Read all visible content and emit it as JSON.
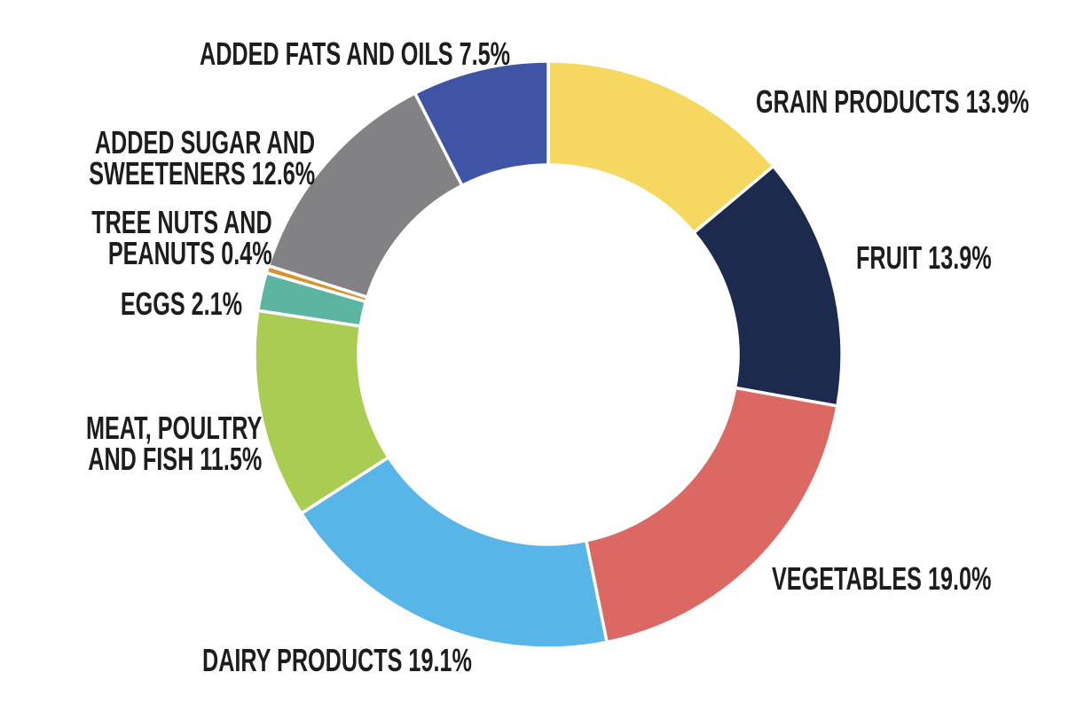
{
  "chart_data": {
    "type": "pie",
    "variant": "donut",
    "title": "",
    "unit": "%",
    "total": 100.0,
    "direction": "clockwise",
    "start_at": "12-oclock",
    "legend_position": "labels-around-ring",
    "background": "#ffffff",
    "label_color": "#1d1d1b",
    "segments": [
      {
        "id": "grain-products",
        "label": "GRAIN PRODUCTS",
        "value": 13.9,
        "display": "13.9%",
        "color": "#F6D75F",
        "label_lines": [
          "GRAIN PRODUCTS 13.9%"
        ]
      },
      {
        "id": "fruit",
        "label": "FRUIT",
        "value": 13.9,
        "display": "13.9%",
        "color": "#1C2B4D",
        "label_lines": [
          "FRUIT 13.9%"
        ]
      },
      {
        "id": "vegetables",
        "label": "VEGETABLES",
        "value": 19.0,
        "display": "19.0%",
        "color": "#DB6863",
        "label_lines": [
          "VEGETABLES 19.0%"
        ]
      },
      {
        "id": "dairy-products",
        "label": "DAIRY PRODUCTS",
        "value": 19.1,
        "display": "19.1%",
        "color": "#57B5E8",
        "label_lines": [
          "DAIRY PRODUCTS 19.1%"
        ]
      },
      {
        "id": "meat-poultry-and-fish",
        "label": "MEAT, POULTRY AND FISH",
        "value": 11.5,
        "display": "11.5%",
        "color": "#A9CC52",
        "label_lines": [
          "MEAT, POULTRY",
          "AND FISH 11.5%"
        ]
      },
      {
        "id": "eggs",
        "label": "EGGS",
        "value": 2.1,
        "display": "2.1%",
        "color": "#5BB5A0",
        "label_lines": [
          "EGGS 2.1%"
        ]
      },
      {
        "id": "tree-nuts-and-peanuts",
        "label": "TREE NUTS AND PEANUTS",
        "value": 0.4,
        "display": "0.4%",
        "color": "#DA922F",
        "label_lines": [
          "TREE NUTS AND",
          "PEANUTS 0.4%"
        ]
      },
      {
        "id": "added-sugar-and-sweeteners",
        "label": "ADDED SUGAR AND SWEETENERS",
        "value": 12.6,
        "display": "12.6%",
        "color": "#828285",
        "label_lines": [
          "ADDED SUGAR AND",
          "SWEETENERS 12.6%"
        ]
      },
      {
        "id": "added-fats-and-oils",
        "label": "ADDED FATS AND OILS",
        "value": 7.5,
        "display": "7.5%",
        "color": "#3D55A4",
        "label_lines": [
          "ADDED FATS AND OILS 7.5%"
        ]
      }
    ]
  }
}
